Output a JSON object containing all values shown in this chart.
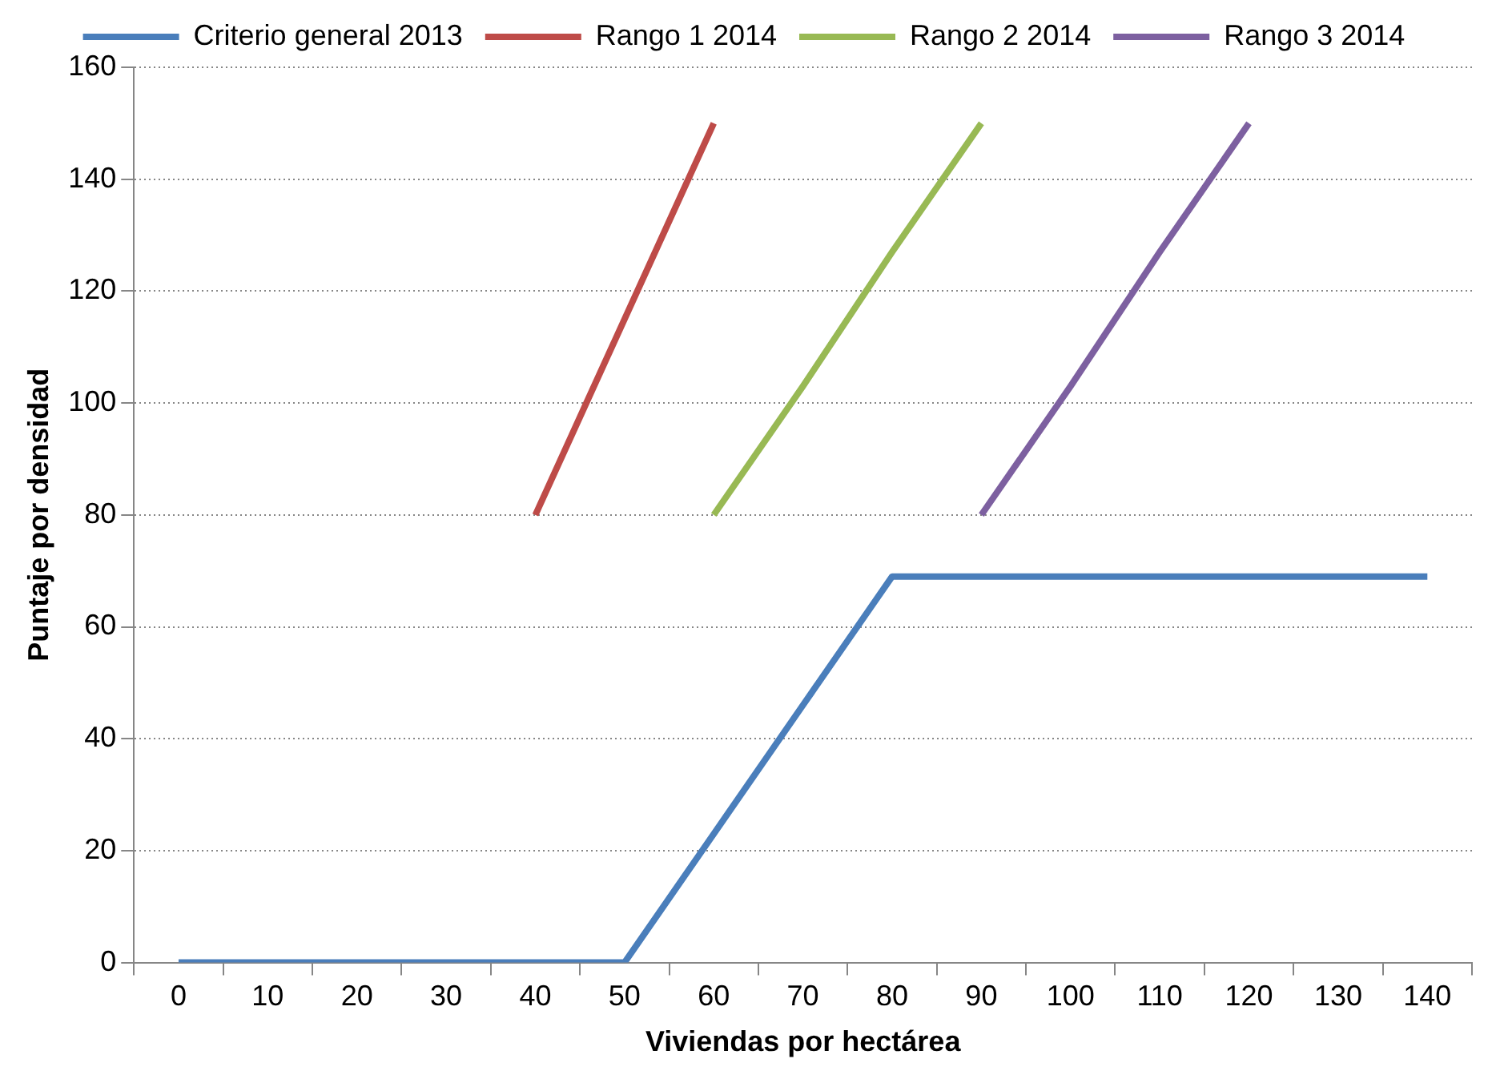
{
  "chart_data": {
    "type": "line",
    "xlabel": "Viviendas por hectárea",
    "ylabel": "Puntaje por densidad",
    "categories": [
      "0",
      "10",
      "20",
      "30",
      "40",
      "50",
      "60",
      "70",
      "80",
      "90",
      "100",
      "110",
      "120",
      "130",
      "140"
    ],
    "ylim": [
      0,
      160
    ],
    "yticks": [
      0,
      20,
      40,
      60,
      80,
      100,
      120,
      140,
      160
    ],
    "grid": "y",
    "legend": "top",
    "marker": "none",
    "line_style": "solid",
    "series": [
      {
        "name": "Criterio general 2013",
        "color": "#4a7ebb",
        "values": [
          0,
          0,
          0,
          0,
          0,
          0,
          23,
          46,
          69,
          69,
          69,
          69,
          69,
          69,
          69
        ]
      },
      {
        "name": "Rango 1 2014",
        "color": "#be4b48",
        "values": [
          null,
          null,
          null,
          null,
          80,
          115,
          150,
          null,
          null,
          null,
          null,
          null,
          null,
          null,
          null
        ]
      },
      {
        "name": "Rango 2 2014",
        "color": "#98b954",
        "values": [
          null,
          null,
          null,
          null,
          null,
          null,
          80,
          103,
          127,
          150,
          null,
          null,
          null,
          null,
          null
        ]
      },
      {
        "name": "Rango 3 2014",
        "color": "#7d60a0",
        "values": [
          null,
          null,
          null,
          null,
          null,
          null,
          null,
          null,
          null,
          80,
          103,
          127,
          150,
          null,
          null
        ]
      }
    ]
  }
}
